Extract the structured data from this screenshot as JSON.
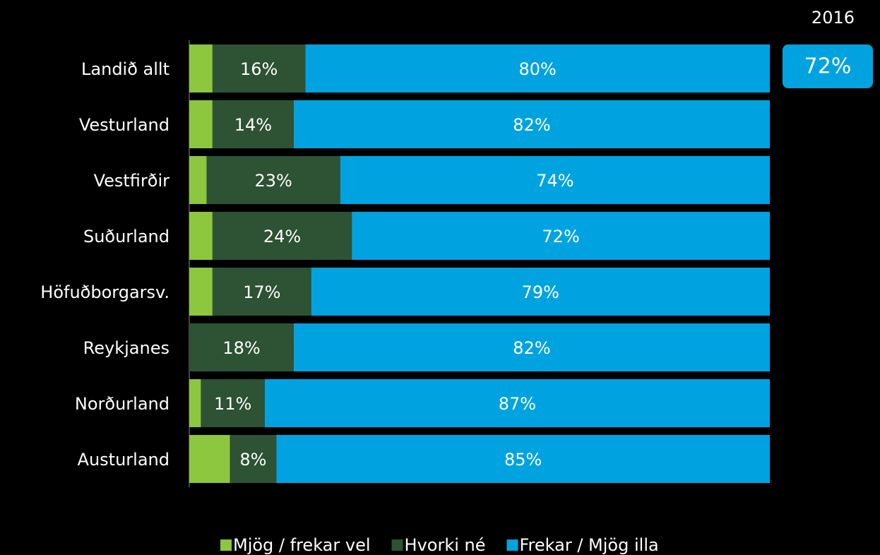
{
  "chart_data": {
    "type": "stacked_barh",
    "categories": [
      "Landið allt",
      "Vesturland",
      "Vestfirðir",
      "Suðurland",
      "Höfuðborgarsv.",
      "Reykjanes",
      "Norðurland",
      "Austurland"
    ],
    "series": [
      {
        "name": "Mjög / frekar vel",
        "color": "#8dc63f",
        "values": [
          4,
          4,
          3,
          4,
          4,
          0,
          2,
          7
        ]
      },
      {
        "name": "Hvorki né",
        "color": "#2d5234",
        "values": [
          16,
          14,
          23,
          24,
          17,
          18,
          11,
          8
        ],
        "value_labels": [
          "16%",
          "14%",
          "23%",
          "24%",
          "17%",
          "18%",
          "11%",
          "8%"
        ]
      },
      {
        "name": "Frekar / Mjög illa",
        "color": "#00a3e0",
        "values": [
          80,
          82,
          74,
          72,
          79,
          82,
          87,
          85
        ],
        "value_labels": [
          "80%",
          "82%",
          "74%",
          "72%",
          "79%",
          "82%",
          "87%",
          "85%"
        ]
      }
    ],
    "xlim": [
      0,
      100
    ],
    "annotation": {
      "title": "2016",
      "text": "72%"
    }
  }
}
